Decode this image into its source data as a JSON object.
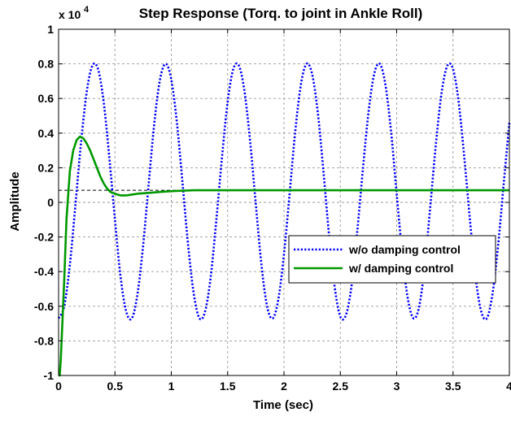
{
  "chart_data": {
    "type": "line",
    "title": "Step Response (Torq. to joint in Ankle Roll)",
    "xlabel": "Time (sec)",
    "ylabel": "Amplitude",
    "y_multiplier_label": "x 10",
    "y_multiplier_exponent": "4",
    "xlim": [
      0,
      4
    ],
    "ylim": [
      -1,
      1
    ],
    "x_ticks": [
      0,
      0.5,
      1,
      1.5,
      2,
      2.5,
      3,
      3.5,
      4
    ],
    "x_tick_labels": [
      "0",
      "0.5",
      "1",
      "1.5",
      "2",
      "2.5",
      "3",
      "3.5",
      "4"
    ],
    "y_ticks": [
      -1,
      -0.8,
      -0.6,
      -0.4,
      -0.2,
      0,
      0.2,
      0.4,
      0.6,
      0.8,
      1
    ],
    "y_tick_labels": [
      "-1",
      "-0.8",
      "-0.6",
      "-0.4",
      "-0.2",
      "0",
      "0.2",
      "0.4",
      "0.6",
      "0.8",
      "1"
    ],
    "grid": true,
    "legend_position": "right",
    "steady_state_reference": 0.07,
    "series": [
      {
        "name": "w/o damping control",
        "color": "#0000ff",
        "style": "dotted",
        "x": [
          0,
          0.05,
          0.1,
          0.15,
          0.2,
          0.25,
          0.3,
          0.35,
          0.4,
          0.45,
          0.5,
          0.55,
          0.6,
          0.65,
          0.7,
          0.75,
          0.8,
          0.85,
          0.9,
          0.95,
          1.0,
          1.05,
          1.1,
          1.15,
          1.2,
          1.25,
          1.3,
          1.35,
          1.4,
          1.45,
          1.5,
          1.55,
          1.6,
          1.65,
          1.7,
          1.75,
          1.8,
          1.85,
          1.9,
          1.95,
          2.0,
          2.05,
          2.1,
          2.15,
          2.2,
          2.25,
          2.3,
          2.35,
          2.4,
          2.45,
          2.5,
          2.55,
          2.6,
          2.65,
          2.7,
          2.75,
          2.8,
          2.85,
          2.9,
          2.95,
          3.0,
          3.05,
          3.1,
          3.15,
          3.2,
          3.25,
          3.3,
          3.35,
          3.4,
          3.45,
          3.5,
          3.55,
          3.6,
          3.65,
          3.7,
          3.75,
          3.8,
          3.85,
          3.9,
          3.95,
          4.0
        ],
        "y": [
          -0.67,
          -0.6,
          -0.36,
          -0.01,
          0.35,
          0.64,
          0.79,
          0.77,
          0.58,
          0.26,
          -0.1,
          -0.43,
          -0.63,
          -0.67,
          -0.53,
          -0.25,
          0.11,
          0.46,
          0.71,
          0.8,
          0.71,
          0.46,
          0.11,
          -0.25,
          -0.53,
          -0.67,
          -0.63,
          -0.43,
          -0.1,
          0.26,
          0.58,
          0.77,
          0.79,
          0.64,
          0.35,
          -0.01,
          -0.36,
          -0.6,
          -0.67,
          -0.56,
          -0.3,
          0.05,
          0.41,
          0.68,
          0.8,
          0.74,
          0.52,
          0.18,
          -0.19,
          -0.49,
          -0.66,
          -0.65,
          -0.48,
          -0.17,
          0.19,
          0.52,
          0.74,
          0.8,
          0.68,
          0.41,
          0.05,
          -0.3,
          -0.56,
          -0.67,
          -0.6,
          -0.36,
          -0.01,
          0.35,
          0.64,
          0.79,
          0.77,
          0.58,
          0.26,
          -0.1,
          -0.43,
          -0.63,
          -0.67,
          -0.53,
          -0.25,
          0.11,
          0.46
        ]
      },
      {
        "name": "w/ damping control",
        "color": "#009900",
        "style": "solid",
        "x": [
          0,
          0.01,
          0.02,
          0.03,
          0.05,
          0.07,
          0.1,
          0.13,
          0.16,
          0.19,
          0.22,
          0.25,
          0.28,
          0.31,
          0.34,
          0.37,
          0.4,
          0.43,
          0.46,
          0.5,
          0.55,
          0.6,
          0.65,
          0.7,
          0.8,
          0.9,
          1.0,
          1.2,
          1.5,
          2.0,
          2.5,
          3.0,
          3.5,
          4.0
        ],
        "y": [
          -1.0,
          -1.0,
          -0.9,
          -0.75,
          -0.45,
          -0.1,
          0.18,
          0.3,
          0.36,
          0.38,
          0.37,
          0.34,
          0.3,
          0.25,
          0.2,
          0.15,
          0.11,
          0.08,
          0.06,
          0.05,
          0.04,
          0.04,
          0.045,
          0.05,
          0.055,
          0.06,
          0.065,
          0.07,
          0.07,
          0.07,
          0.07,
          0.07,
          0.07,
          0.07
        ]
      }
    ]
  }
}
